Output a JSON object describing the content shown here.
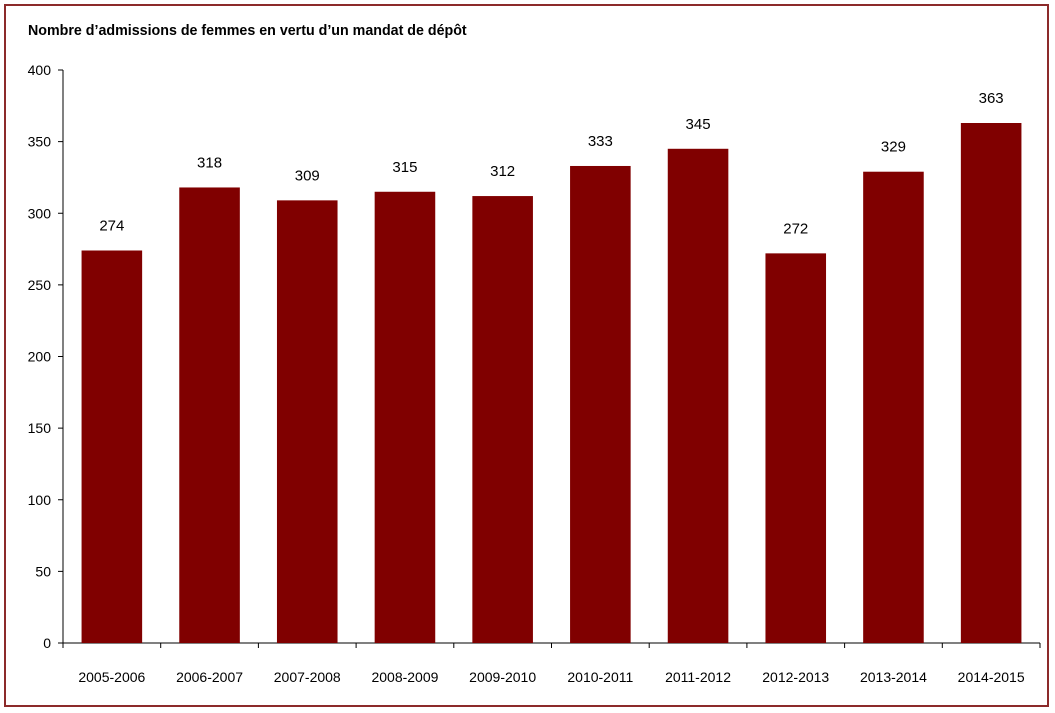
{
  "chart_data": {
    "type": "bar",
    "title": "",
    "ylabel": "Nombre d’admissions de femmes en vertu d’un mandat de dépôt",
    "xlabel": "",
    "categories": [
      "2005-2006",
      "2006-2007",
      "2007-2008",
      "2008-2009",
      "2009-2010",
      "2010-2011",
      "2011-2012",
      "2012-2013",
      "2013-2014",
      "2014-2015"
    ],
    "values": [
      274,
      318,
      309,
      315,
      312,
      333,
      345,
      272,
      329,
      363
    ],
    "ylim": [
      0,
      400
    ],
    "yticks": [
      0,
      50,
      100,
      150,
      200,
      250,
      300,
      350,
      400
    ],
    "grid": false,
    "legend": "none",
    "colors": {
      "bar": "#800000",
      "frame": "#8c2a2a",
      "axis": "#000000"
    }
  }
}
